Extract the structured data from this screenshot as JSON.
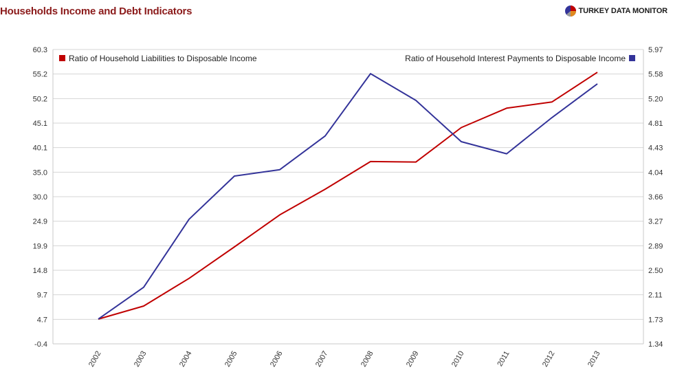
{
  "header": {
    "title": "Households Income and Debt Indicators",
    "brand": "TURKEY DATA MONITOR",
    "brand_icon": "pie-logo-icon"
  },
  "colors": {
    "title": "#8b1a1a",
    "series_left": "#c00000",
    "series_right": "#333399",
    "grid": "#d4d4d4"
  },
  "chart_data": {
    "type": "line",
    "title": "Households Income and Debt Indicators",
    "xlabel": "",
    "ylabel": "",
    "categories": [
      "2002",
      "2003",
      "2004",
      "2005",
      "2006",
      "2007",
      "2008",
      "2009",
      "2010",
      "2011",
      "2012",
      "2013"
    ],
    "left_axis": {
      "ticks": [
        "60.3",
        "55.2",
        "50.2",
        "45.1",
        "40.1",
        "35.0",
        "30.0",
        "24.9",
        "19.9",
        "14.8",
        "9.7",
        "4.7",
        "-0.4"
      ],
      "ylim": [
        -0.4,
        60.3
      ]
    },
    "right_axis": {
      "ticks": [
        "5.97",
        "5.58",
        "5.20",
        "4.81",
        "4.43",
        "4.04",
        "3.66",
        "3.27",
        "2.89",
        "2.50",
        "2.11",
        "1.73",
        "1.34"
      ],
      "ylim": [
        1.34,
        5.97
      ]
    },
    "series": [
      {
        "name": "Ratio of Household Liabilities to Disposable Income",
        "axis": "left",
        "color": "#c00000",
        "values": [
          4.7,
          7.4,
          13.1,
          19.6,
          26.2,
          31.5,
          37.2,
          37.1,
          44.2,
          48.2,
          49.5,
          55.6
        ]
      },
      {
        "name": "Ratio of Household Interest Payments to Disposable Income",
        "axis": "right",
        "color": "#333399",
        "values": [
          1.73,
          2.23,
          3.3,
          3.98,
          4.08,
          4.61,
          5.59,
          5.17,
          4.52,
          4.33,
          4.9,
          5.43
        ]
      }
    ],
    "legend": [
      {
        "label": "Ratio of Household Liabilities to Disposable Income",
        "placement": "top-left"
      },
      {
        "label": "Ratio of Household Interest Payments to Disposable Income",
        "placement": "top-right"
      }
    ],
    "grid": true
  }
}
